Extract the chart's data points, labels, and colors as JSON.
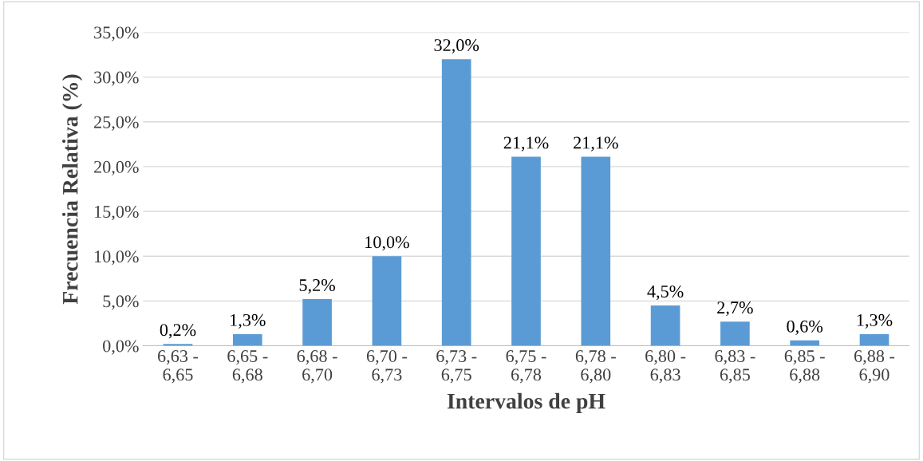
{
  "chart_data": {
    "type": "bar",
    "xlabel": "Intervalos de pH",
    "ylabel": "Frecuencia Relativa (%)",
    "categories": [
      "6,63 -\n6,65",
      "6,65 -\n6,68",
      "6,68 -\n6,70",
      "6,70 -\n6,73",
      "6,73 -\n6,75",
      "6,75 -\n6,78",
      "6,78 -\n6,80",
      "6,80 -\n6,83",
      "6,83 -\n6,85",
      "6,85 -\n6,88",
      "6,88 -\n6,90"
    ],
    "values": [
      0.2,
      1.3,
      5.2,
      10.0,
      32.0,
      21.1,
      21.1,
      4.5,
      2.7,
      0.6,
      1.3
    ],
    "value_labels": [
      "0,2%",
      "1,3%",
      "5,2%",
      "10,0%",
      "32,0%",
      "21,1%",
      "21,1%",
      "4,5%",
      "2,7%",
      "0,6%",
      "1,3%"
    ],
    "color": "#5b9bd5",
    "ylim": [
      0,
      35
    ],
    "yticks": [
      {
        "value": 0,
        "label": "0,0%"
      },
      {
        "value": 5,
        "label": "5,0%"
      },
      {
        "value": 10,
        "label": "10,0%"
      },
      {
        "value": 15,
        "label": "15,0%"
      },
      {
        "value": 20,
        "label": "20,0%"
      },
      {
        "value": 25,
        "label": "25,0%"
      },
      {
        "value": 30,
        "label": "30,0%"
      },
      {
        "value": 35,
        "label": "35,0%"
      }
    ],
    "grid": "y",
    "legend": false
  }
}
